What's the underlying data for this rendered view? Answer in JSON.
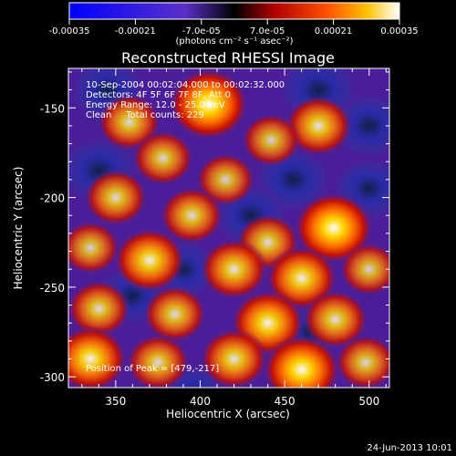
{
  "colorbar": {
    "ticks": [
      "-0.00035",
      "-0.00021",
      "-7.0e-05",
      "7.0e-05",
      "0.00021",
      "0.00035"
    ],
    "tick_values": [
      -0.00035,
      -0.00021,
      -7e-05,
      7e-05,
      0.00021,
      0.00035
    ],
    "range": [
      -0.00035,
      0.00035
    ],
    "units": "(photons cm⁻² s⁻¹ asec⁻²)"
  },
  "chart_data": {
    "type": "heatmap",
    "title": "Reconstructed RHESSI Image",
    "xlabel": "Heliocentric X (arcsec)",
    "ylabel": "Heliocentric Y (arcsec)",
    "xlim": [
      322,
      512
    ],
    "ylim": [
      -306,
      -128
    ],
    "xticks": [
      350,
      400,
      450,
      500
    ],
    "yticks": [
      -150,
      -200,
      -250,
      -300
    ],
    "annotations": [
      "10-Sep-2004 00:02:04.000 to 00:02:32.000",
      "Detectors: 4F 5F 6F 7F 8F, Att 0",
      "Energy Range: 12.0 - 25.0 keV",
      "Clean     Total counts: 229"
    ],
    "peak_label": "Position of Peak = [479,-217]",
    "peak": [
      479,
      -217
    ],
    "blobs": [
      {
        "x": 405,
        "y": -148,
        "v": 1.0
      },
      {
        "x": 358,
        "y": -158,
        "v": 0.6
      },
      {
        "x": 470,
        "y": -160,
        "v": 0.7
      },
      {
        "x": 442,
        "y": -168,
        "v": 0.5
      },
      {
        "x": 378,
        "y": -178,
        "v": 0.55
      },
      {
        "x": 415,
        "y": -190,
        "v": 0.5
      },
      {
        "x": 350,
        "y": -200,
        "v": 0.6
      },
      {
        "x": 395,
        "y": -210,
        "v": 0.6
      },
      {
        "x": 479,
        "y": -217,
        "v": 1.0
      },
      {
        "x": 440,
        "y": -225,
        "v": 0.6
      },
      {
        "x": 335,
        "y": -228,
        "v": 0.5
      },
      {
        "x": 370,
        "y": -235,
        "v": 0.8
      },
      {
        "x": 420,
        "y": -240,
        "v": 0.7
      },
      {
        "x": 460,
        "y": -245,
        "v": 0.8
      },
      {
        "x": 500,
        "y": -240,
        "v": 0.5
      },
      {
        "x": 340,
        "y": -262,
        "v": 0.6
      },
      {
        "x": 385,
        "y": -265,
        "v": 0.6
      },
      {
        "x": 440,
        "y": -270,
        "v": 0.85
      },
      {
        "x": 480,
        "y": -268,
        "v": 0.65
      },
      {
        "x": 335,
        "y": -290,
        "v": 0.85
      },
      {
        "x": 375,
        "y": -292,
        "v": 0.6
      },
      {
        "x": 420,
        "y": -290,
        "v": 0.7
      },
      {
        "x": 460,
        "y": -296,
        "v": 0.95
      },
      {
        "x": 498,
        "y": -292,
        "v": 0.55
      },
      {
        "x": 345,
        "y": -140,
        "v": -0.55
      },
      {
        "x": 470,
        "y": -140,
        "v": -0.7
      },
      {
        "x": 500,
        "y": -160,
        "v": -0.6
      },
      {
        "x": 340,
        "y": -185,
        "v": -0.7
      },
      {
        "x": 455,
        "y": -190,
        "v": -0.6
      },
      {
        "x": 500,
        "y": -195,
        "v": -0.5
      },
      {
        "x": 430,
        "y": -210,
        "v": -0.55
      },
      {
        "x": 390,
        "y": -240,
        "v": -0.4
      },
      {
        "x": 360,
        "y": -255,
        "v": -0.45
      },
      {
        "x": 465,
        "y": -275,
        "v": -0.3
      },
      {
        "x": 395,
        "y": -310,
        "v": -0.4
      }
    ]
  },
  "footer": {
    "date": "24-Jun-2013 10:01"
  }
}
